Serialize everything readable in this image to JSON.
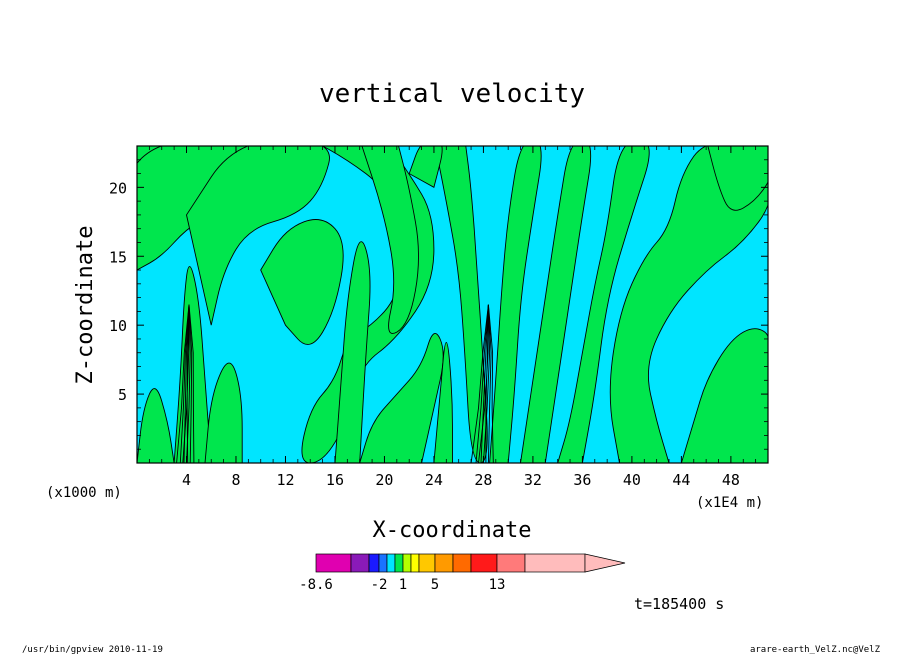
{
  "chart_data": {
    "type": "heatmap",
    "title": "vertical velocity",
    "xlabel": "X-coordinate",
    "ylabel": "Z-coordinate",
    "x_unit_left": "(x1000 m)",
    "x_unit_right": "(x1E4 m)",
    "xlim": [
      0,
      51
    ],
    "ylim": [
      0,
      23
    ],
    "x_ticks": [
      "4",
      "8",
      "12",
      "16",
      "20",
      "24",
      "28",
      "32",
      "36",
      "40",
      "44",
      "48"
    ],
    "y_ticks": [
      "5",
      "10",
      "15",
      "20"
    ],
    "colorbar": {
      "colors": [
        "#e000b0",
        "#8a1ab8",
        "#1a1aff",
        "#1a73ff",
        "#00e5ff",
        "#00e64d",
        "#b3ff00",
        "#ffff00",
        "#ffc800",
        "#ff9a00",
        "#ff6a00",
        "#ff1a1a",
        "#ff7a7a",
        "#ffbcbc"
      ],
      "labels": [
        "-8.6",
        "-2",
        "1",
        "5",
        "13"
      ],
      "extend_arrow_color": "#ffbcbc"
    },
    "time_label": "t=185400 s",
    "field_colors": {
      "negative": "#00e5ff",
      "positive": "#00e64d"
    }
  },
  "footer": {
    "left": "/usr/bin/gpview  2010-11-19",
    "right": "arare-earth_VelZ.nc@VelZ"
  }
}
